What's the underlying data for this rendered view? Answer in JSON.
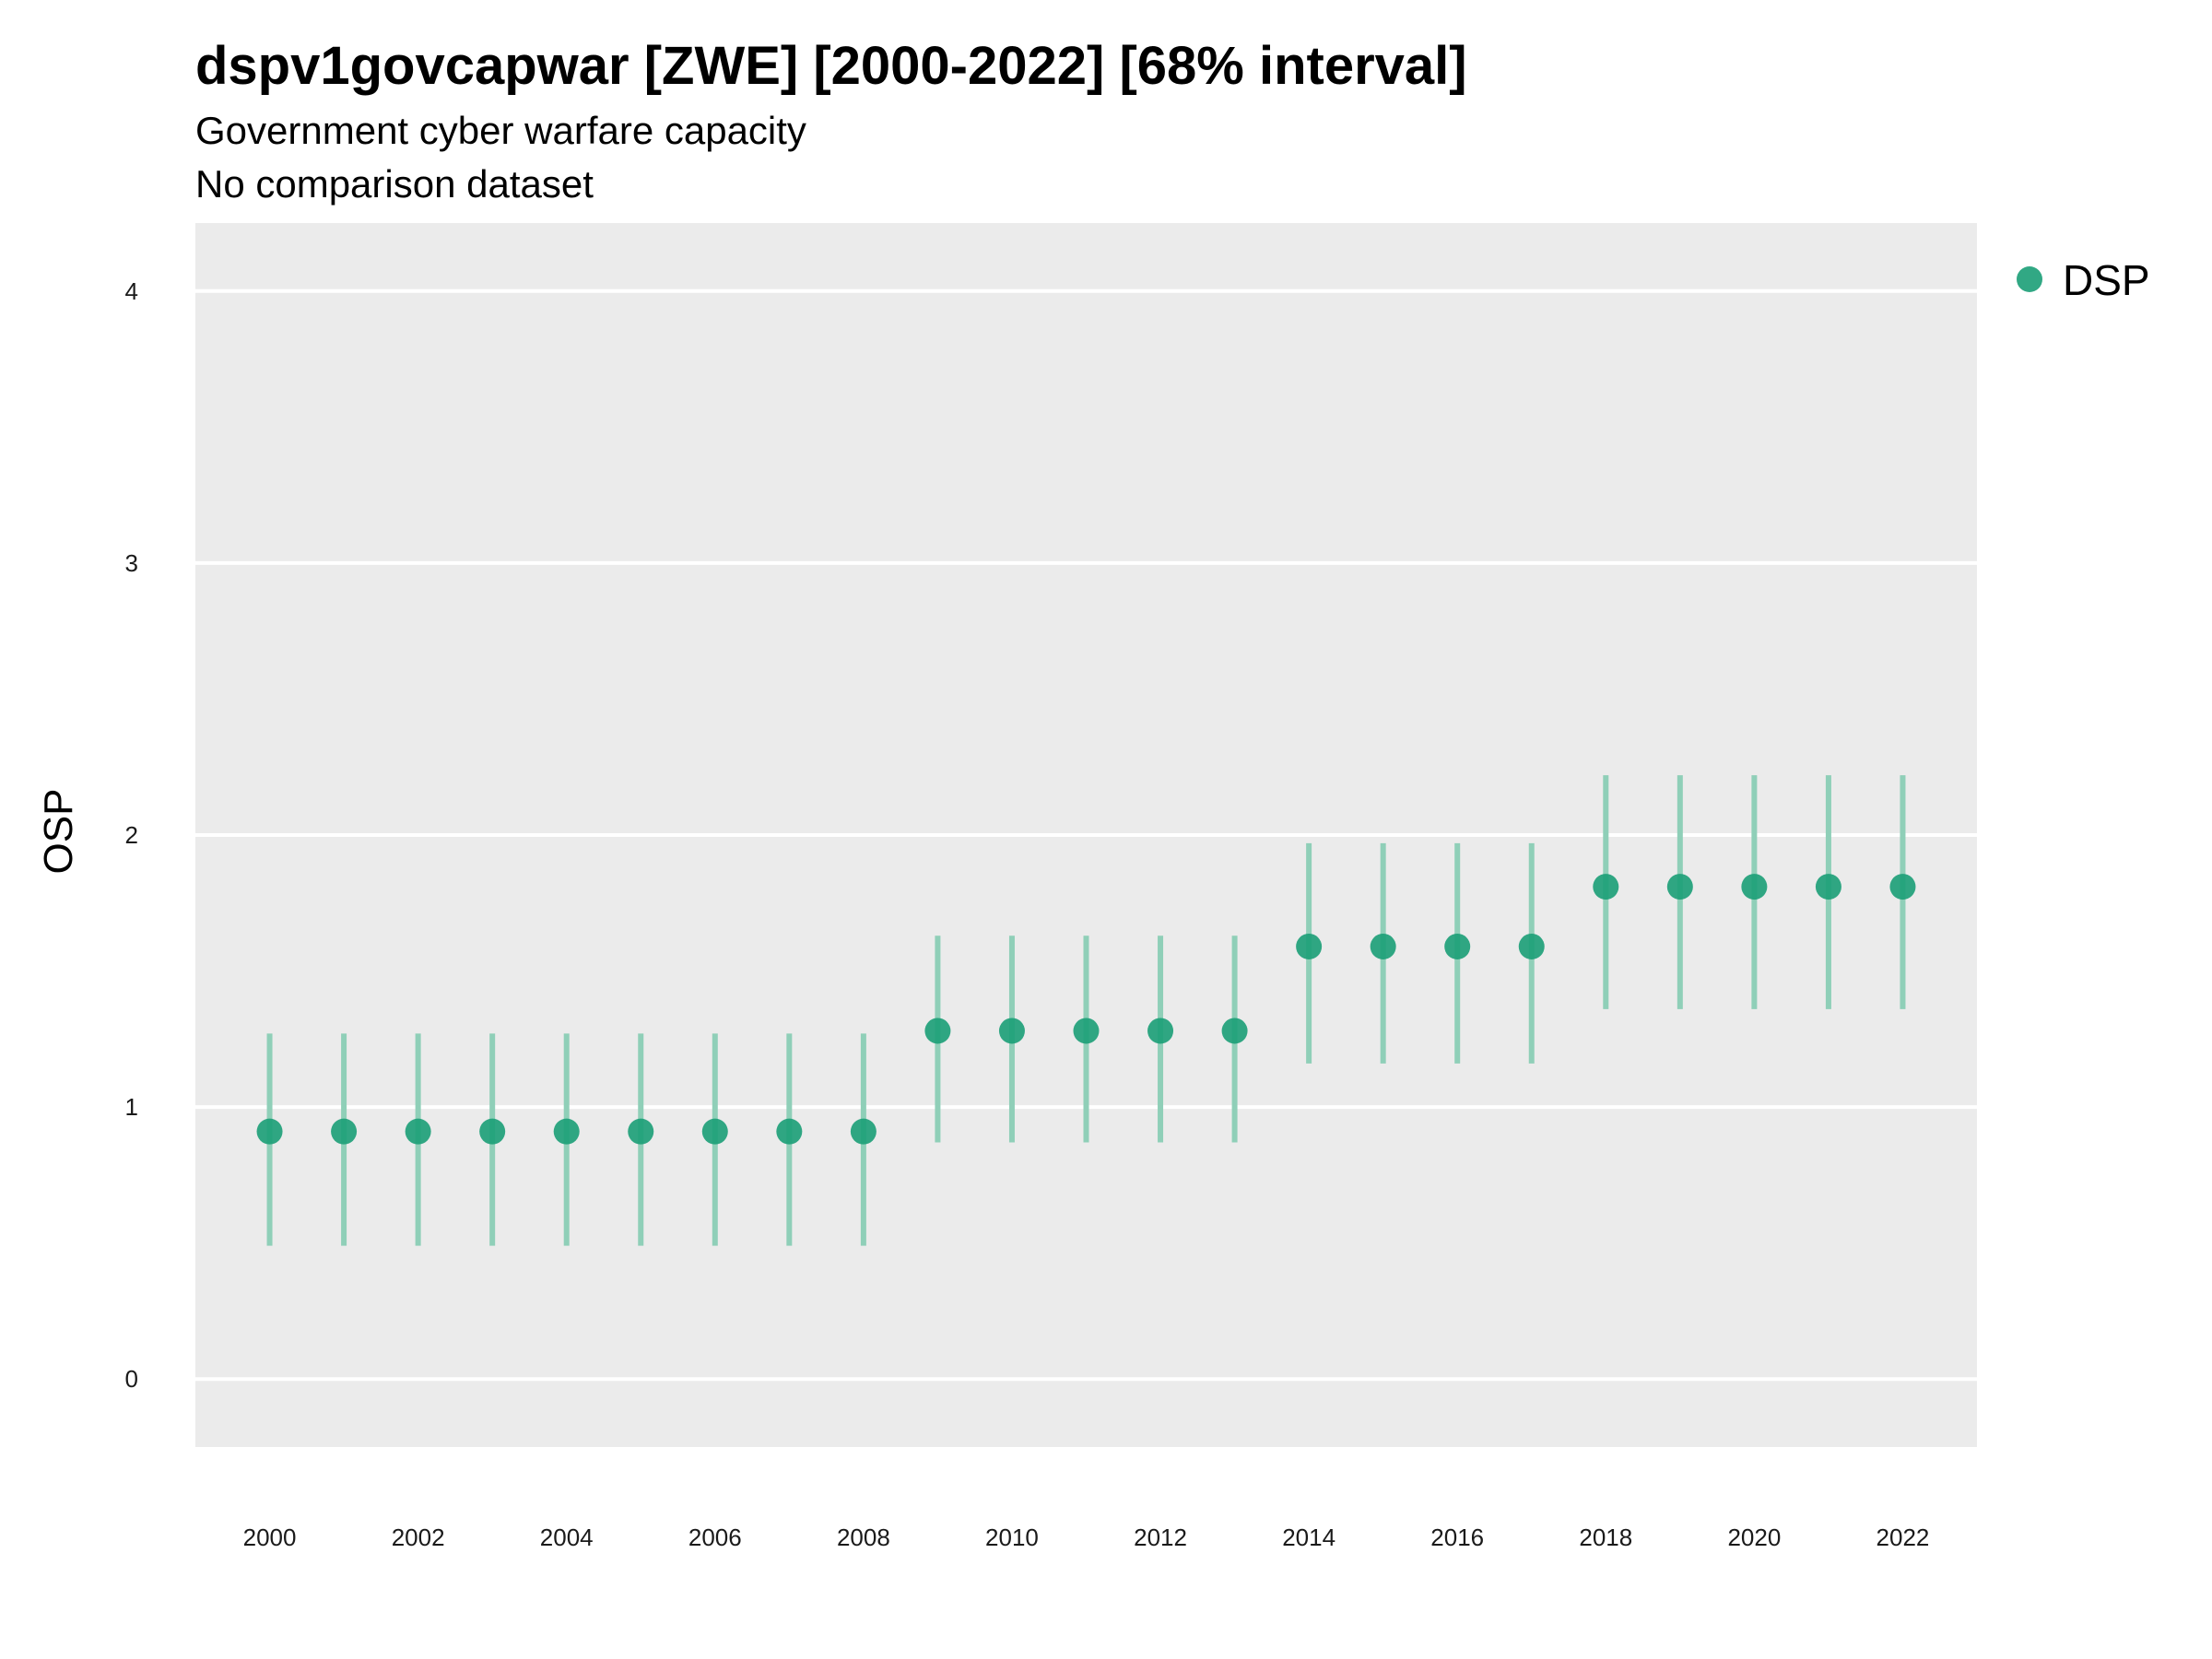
{
  "chart_data": {
    "type": "scatter",
    "title": "dspv1govcapwar [ZWE] [2000-2022] [68% interval]",
    "subtitle": "Government cyber warfare capacity",
    "subtitle2": "No comparison dataset",
    "xlabel": "",
    "ylabel": "OSP",
    "xlim": [
      1999,
      2023
    ],
    "ylim": [
      -0.25,
      4.25
    ],
    "x_ticks": [
      2000,
      2002,
      2004,
      2006,
      2008,
      2010,
      2012,
      2014,
      2016,
      2018,
      2020,
      2022
    ],
    "y_ticks": [
      0,
      1,
      2,
      3,
      4
    ],
    "grid": true,
    "legend_position": "right",
    "colors": {
      "point": "#1b9e77",
      "interval": "#8fcfb8",
      "panel": "#ebebeb",
      "grid": "#ffffff"
    },
    "series": [
      {
        "name": "DSP",
        "x": [
          2000,
          2001,
          2002,
          2003,
          2004,
          2005,
          2006,
          2007,
          2008,
          2009,
          2010,
          2011,
          2012,
          2013,
          2014,
          2015,
          2016,
          2017,
          2018,
          2019,
          2020,
          2021,
          2022
        ],
        "y": [
          0.91,
          0.91,
          0.91,
          0.91,
          0.91,
          0.91,
          0.91,
          0.91,
          0.91,
          1.28,
          1.28,
          1.28,
          1.28,
          1.28,
          1.59,
          1.59,
          1.59,
          1.59,
          1.81,
          1.81,
          1.81,
          1.81,
          1.81
        ],
        "lower": [
          0.49,
          0.49,
          0.49,
          0.49,
          0.49,
          0.49,
          0.49,
          0.49,
          0.49,
          0.87,
          0.87,
          0.87,
          0.87,
          0.87,
          1.16,
          1.16,
          1.16,
          1.16,
          1.36,
          1.36,
          1.36,
          1.36,
          1.36
        ],
        "upper": [
          1.27,
          1.27,
          1.27,
          1.27,
          1.27,
          1.27,
          1.27,
          1.27,
          1.27,
          1.63,
          1.63,
          1.63,
          1.63,
          1.63,
          1.97,
          1.97,
          1.97,
          1.97,
          2.22,
          2.22,
          2.22,
          2.22,
          2.22
        ]
      }
    ]
  }
}
